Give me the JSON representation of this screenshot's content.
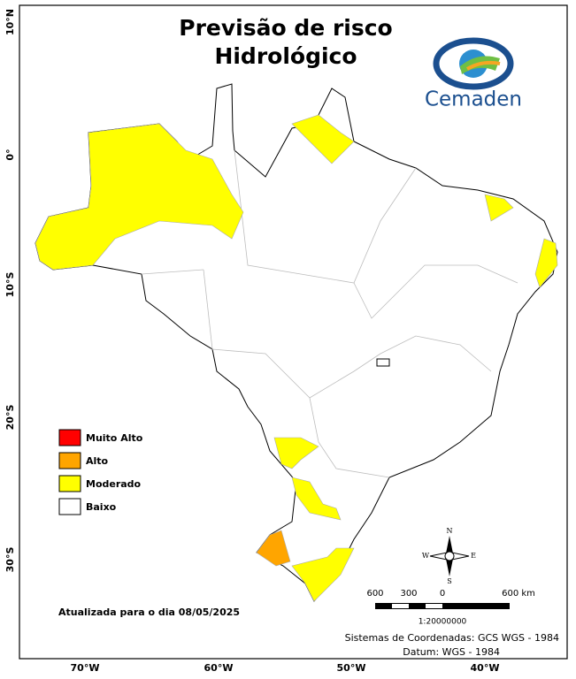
{
  "title": [
    "Previsão de risco",
    "Hidrológico"
  ],
  "logo": "Cemaden",
  "lat_labels": [
    "10°N",
    "0°",
    "10°S",
    "20°S",
    "30°S"
  ],
  "lon_labels": [
    "70°W",
    "60°W",
    "50°W",
    "40°W"
  ],
  "legend": [
    {
      "label": "Muito Alto",
      "color": "#ff0000"
    },
    {
      "label": "Alto",
      "color": "#ffa500"
    },
    {
      "label": "Moderado",
      "color": "#ffff00"
    },
    {
      "label": "Baixo",
      "color": "#ffffff"
    }
  ],
  "updated": "Atualizada para o dia 08/05/2025",
  "scale": {
    "labels": [
      "600",
      "300",
      "0",
      "600 km"
    ],
    "ratio": "1:20000000"
  },
  "compass": [
    "N",
    "S",
    "E",
    "W"
  ],
  "footer": [
    "Sistemas de Coordenadas: GCS WGS - 1984",
    "Datum: WGS - 1984"
  ]
}
